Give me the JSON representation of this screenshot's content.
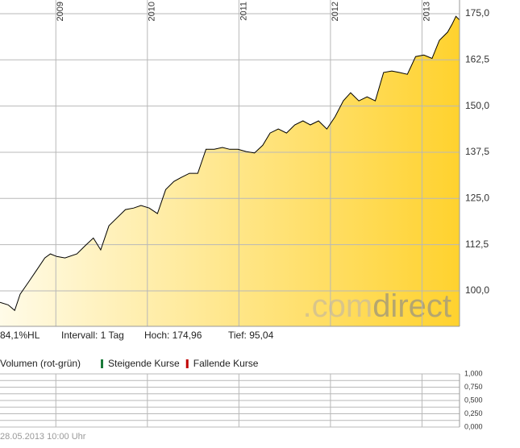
{
  "chart_data": [
    {
      "type": "area",
      "x": [
        2008.39,
        2008.48,
        2008.55,
        2008.61,
        2008.7,
        2008.79,
        2008.88,
        2008.94,
        2009.01,
        2009.1,
        2009.23,
        2009.32,
        2009.41,
        2009.49,
        2009.58,
        2009.67,
        2009.76,
        2009.85,
        2009.93,
        2010.02,
        2010.11,
        2010.2,
        2010.29,
        2010.37,
        2010.46,
        2010.55,
        2010.64,
        2010.73,
        2010.82,
        2010.9,
        2010.99,
        2011.08,
        2011.17,
        2011.26,
        2011.34,
        2011.43,
        2011.52,
        2011.61,
        2011.7,
        2011.78,
        2011.87,
        2011.96,
        2012.05,
        2012.14,
        2012.22,
        2012.31,
        2012.4,
        2012.49,
        2012.58,
        2012.67,
        2012.75,
        2012.84,
        2012.93,
        2013.02,
        2013.11,
        2013.19,
        2013.28,
        2013.33,
        2013.37,
        2013.41
      ],
      "values": [
        96.9,
        96.2,
        94.7,
        99.1,
        102.3,
        105.6,
        108.9,
        110.0,
        109.3,
        108.9,
        110.0,
        112.2,
        114.3,
        111.1,
        117.6,
        119.8,
        122.0,
        122.4,
        123.1,
        122.4,
        120.9,
        127.4,
        129.6,
        130.7,
        131.8,
        131.8,
        138.3,
        138.3,
        138.8,
        138.3,
        138.3,
        137.7,
        137.3,
        139.4,
        142.7,
        143.8,
        142.7,
        144.9,
        146.0,
        144.9,
        146.0,
        143.8,
        147.1,
        151.4,
        153.6,
        151.4,
        152.5,
        151.4,
        159.1,
        159.5,
        159.1,
        158.6,
        163.4,
        163.8,
        162.9,
        167.8,
        170.0,
        172.2,
        174.3,
        173.3
      ],
      "color": "#000000",
      "fill_colors": [
        "#fffbe8",
        "#ffd22e"
      ],
      "xlim": [
        2008.39,
        2013.41
      ],
      "xticks": [
        2009,
        2010,
        2011,
        2012,
        2013
      ],
      "ylim": [
        90.4,
        178.7
      ],
      "yticks": [
        {
          "value": 100,
          "label": "100,0"
        },
        {
          "value": 112.5,
          "label": "112,5"
        },
        {
          "value": 125,
          "label": "125,0"
        },
        {
          "value": 137.5,
          "label": "137,5"
        },
        {
          "value": 150,
          "label": "150,0"
        },
        {
          "value": 162.5,
          "label": "162,5"
        },
        {
          "value": 175,
          "label": "175,0"
        }
      ],
      "grid": true,
      "watermark": [
        ".com",
        "direct"
      ],
      "info": [
        "84,1%HL",
        "Intervall: 1 Tag",
        "Hoch: 174,96",
        "Tief: 95,04"
      ]
    },
    {
      "type": "volume",
      "title": "Volumen (rot-grün)",
      "legend": [
        {
          "name": "Steigende Kurse",
          "color": "#1a7a3a"
        },
        {
          "name": "Fallende Kurse",
          "color": "#c00000"
        }
      ],
      "ylim": [
        0,
        1
      ],
      "yticks": [
        {
          "value": 0,
          "label": "0,000"
        },
        {
          "value": 0.25,
          "label": "0,250"
        },
        {
          "value": 0.5,
          "label": "0,500"
        },
        {
          "value": 0.75,
          "label": "0,750"
        },
        {
          "value": 1,
          "label": "1,000"
        }
      ],
      "grid": true
    }
  ],
  "footer": "28.05.2013 10:00 Uhr"
}
